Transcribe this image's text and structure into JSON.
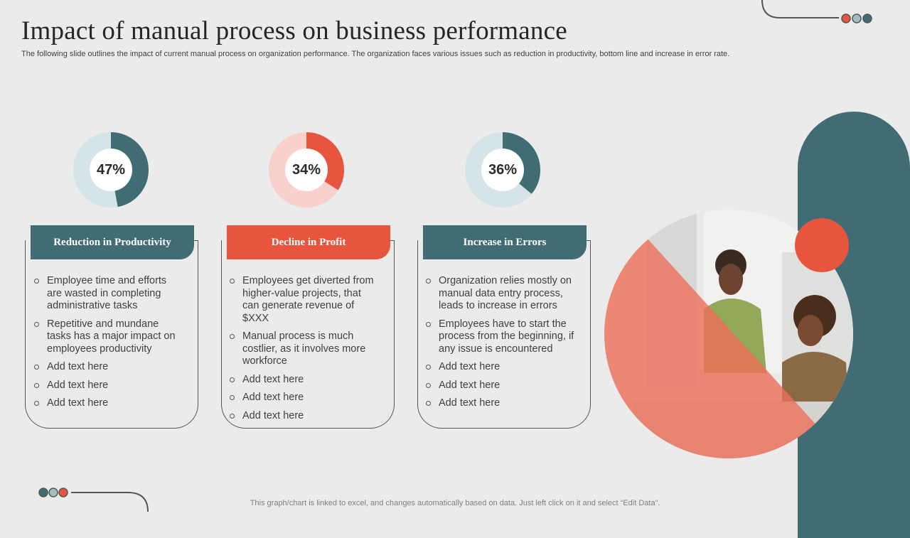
{
  "title": "Impact of manual process on business performance",
  "subtitle": "The following slide outlines the impact of current manual process on organization performance. The organization faces various issues such as reduction in productivity, bottom line and increase in error rate.",
  "footer": "This graph/chart is linked to excel,  and changes automatically based on data. Just left click on it and select “Edit Data”.",
  "colors": {
    "teal": "#426c74",
    "red": "#e8553f",
    "teal_light": "#d5e4e7",
    "red_light": "#f9d0cb",
    "background": "#ebebeb"
  },
  "chart_data": [
    {
      "type": "pie",
      "variant": "donut",
      "values": [
        47,
        53
      ],
      "label": "47%",
      "color": "#426c74",
      "track_color": "#d5e4e7"
    },
    {
      "type": "pie",
      "variant": "donut",
      "values": [
        34,
        66
      ],
      "label": "34%",
      "color": "#e8553f",
      "track_color": "#f9d0cb"
    },
    {
      "type": "pie",
      "variant": "donut",
      "values": [
        36,
        64
      ],
      "label": "36%",
      "color": "#426c74",
      "track_color": "#d5e4e7"
    }
  ],
  "cards": [
    {
      "title": "Reduction in Productivity",
      "items": [
        "Employee time and efforts are wasted in completing administrative tasks",
        "Repetitive and mundane tasks has a major impact on employees productivity",
        "Add text here",
        "Add text here",
        "Add text here"
      ]
    },
    {
      "title": "Decline in Profit",
      "items": [
        "Employees get diverted from higher-value projects, that can generate revenue of $XXX",
        "Manual process is much costlier, as it involves more workforce",
        "Add text here",
        "Add text here",
        "Add text here"
      ]
    },
    {
      "title": "Increase in Errors",
      "items": [
        "Organization relies mostly on manual data entry process, leads to increase in errors",
        "Employees have to start the process from the beginning, if any issue is encountered",
        "Add text here",
        "Add text here",
        "Add text here"
      ]
    }
  ]
}
